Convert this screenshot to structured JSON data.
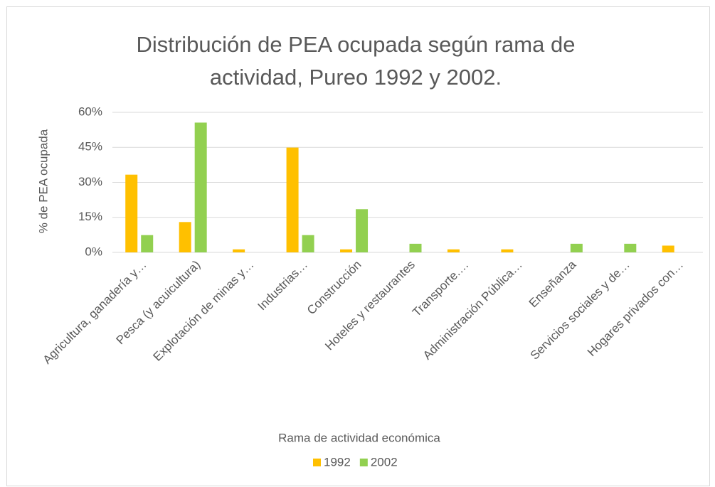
{
  "chart_data": {
    "type": "bar",
    "title": "Distribución de PEA ocupada según rama de actividad, Pureo 1992 y 2002.",
    "ylabel": "% de PEA ocupada",
    "xlabel": "Rama de actividad económica",
    "categories": [
      "Agricultura, ganadería y…",
      "Pesca (y acuicultura)",
      "Explotación de minas y…",
      "Industrias…",
      "Construcción",
      "Hoteles y restaurantes",
      "Transporte.…",
      "Administración Pública…",
      "Enseñanza",
      "Servicios sociales y de…",
      "Hogares privados con…"
    ],
    "series": [
      {
        "name": "1992",
        "color": "#ffc000",
        "values": [
          33.3,
          13,
          1.3,
          44.9,
          1.3,
          0,
          1.3,
          1.3,
          0,
          0,
          2.9
        ]
      },
      {
        "name": "2002",
        "color": "#92d050",
        "values": [
          7.4,
          55.6,
          0,
          7.4,
          18.5,
          3.7,
          0,
          0,
          3.7,
          3.7,
          0
        ]
      }
    ],
    "ylim": [
      0,
      60
    ],
    "yticks": [
      {
        "value": 0,
        "label": "0%"
      },
      {
        "value": 15,
        "label": "15%"
      },
      {
        "value": 30,
        "label": "30%"
      },
      {
        "value": 45,
        "label": "45%"
      },
      {
        "value": 60,
        "label": "60%"
      }
    ],
    "grid": true,
    "legend": "bottom"
  }
}
